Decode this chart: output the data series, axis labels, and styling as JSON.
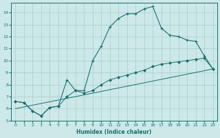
{
  "xlabel": "Humidex (Indice chaleur)",
  "background_color": "#cce8e8",
  "grid_color": "#aacccc",
  "line_color": "#1a6e6e",
  "xlim": [
    -0.5,
    23.5
  ],
  "ylim": [
    5,
    14.8
  ],
  "xticks": [
    0,
    1,
    2,
    3,
    4,
    5,
    6,
    7,
    8,
    9,
    10,
    11,
    12,
    13,
    14,
    15,
    16,
    17,
    18,
    19,
    20,
    21,
    22,
    23
  ],
  "yticks": [
    5,
    6,
    7,
    8,
    9,
    10,
    11,
    12,
    13,
    14
  ],
  "line1_x": [
    0,
    23
  ],
  "line1_y": [
    6.0,
    9.3
  ],
  "line2_x": [
    0,
    1,
    2,
    3,
    4,
    5,
    6,
    7,
    8,
    9,
    10,
    11,
    12,
    13,
    14,
    15,
    16,
    17,
    18,
    19,
    20,
    21,
    22,
    23
  ],
  "line2_y": [
    6.6,
    6.5,
    5.8,
    5.4,
    6.1,
    6.2,
    7.0,
    7.5,
    7.3,
    7.5,
    8.0,
    8.4,
    8.6,
    8.8,
    9.0,
    9.2,
    9.5,
    9.7,
    9.8,
    9.9,
    10.0,
    10.1,
    10.2,
    9.3
  ],
  "line3_x": [
    0,
    1,
    2,
    3,
    4,
    5,
    6,
    7,
    8,
    9,
    10,
    11,
    12,
    13,
    14,
    15,
    16,
    17,
    18,
    19,
    20,
    21,
    22,
    23
  ],
  "line3_y": [
    6.6,
    6.5,
    5.8,
    5.4,
    6.1,
    6.2,
    8.4,
    7.5,
    7.5,
    10.0,
    11.2,
    12.8,
    13.5,
    13.9,
    13.9,
    14.3,
    14.5,
    12.7,
    12.1,
    12.0,
    11.7,
    11.6,
    10.4,
    9.3
  ]
}
